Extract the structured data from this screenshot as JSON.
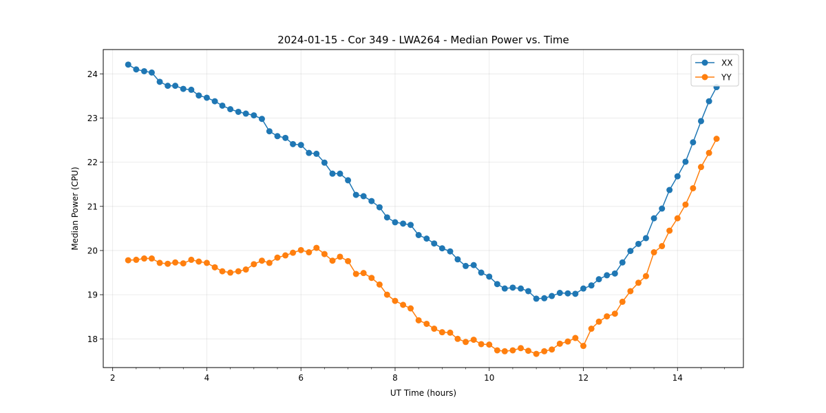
{
  "chart_data": {
    "type": "line",
    "title": "2024-01-15 - Cor 349 - LWA264 - Median Power vs. Time",
    "xlabel": "UT Time (hours)",
    "ylabel": "Median Power (CPU)",
    "xlim": [
      1.8,
      15.4
    ],
    "ylim": [
      17.35,
      24.55
    ],
    "xticks": [
      2,
      4,
      6,
      8,
      10,
      12,
      14
    ],
    "xtick_labels": [
      "2",
      "4",
      "6",
      "8",
      "10",
      "12",
      "14"
    ],
    "yticks": [
      18,
      19,
      20,
      21,
      22,
      23,
      24
    ],
    "ytick_labels": [
      "18",
      "19",
      "20",
      "21",
      "22",
      "23",
      "24"
    ],
    "grid": true,
    "legend_position": "top-right",
    "x": [
      2.33,
      2.5,
      2.67,
      2.83,
      3.0,
      3.17,
      3.33,
      3.5,
      3.67,
      3.83,
      4.0,
      4.17,
      4.33,
      4.5,
      4.67,
      4.83,
      5.0,
      5.17,
      5.33,
      5.5,
      5.67,
      5.83,
      6.0,
      6.17,
      6.33,
      6.5,
      6.67,
      6.83,
      7.0,
      7.17,
      7.33,
      7.5,
      7.67,
      7.83,
      8.0,
      8.17,
      8.33,
      8.5,
      8.67,
      8.83,
      9.0,
      9.17,
      9.33,
      9.5,
      9.67,
      9.83,
      10.0,
      10.17,
      10.33,
      10.5,
      10.67,
      10.83,
      11.0,
      11.17,
      11.33,
      11.5,
      11.67,
      11.83,
      12.0,
      12.17,
      12.33,
      12.5,
      12.67,
      12.83,
      13.0,
      13.17,
      13.33,
      13.5,
      13.67,
      13.83,
      14.0,
      14.17,
      14.33,
      14.5,
      14.67,
      14.83
    ],
    "series": [
      {
        "name": "XX",
        "color": "#1f77b4",
        "values": [
          24.21,
          24.1,
          24.06,
          24.03,
          23.82,
          23.73,
          23.73,
          23.66,
          23.64,
          23.51,
          23.46,
          23.38,
          23.28,
          23.2,
          23.14,
          23.1,
          23.06,
          22.98,
          22.7,
          22.59,
          22.55,
          22.41,
          22.39,
          22.21,
          22.19,
          21.99,
          21.74,
          21.74,
          21.59,
          21.26,
          21.23,
          21.12,
          20.98,
          20.75,
          20.64,
          20.61,
          20.58,
          20.35,
          20.27,
          20.16,
          20.05,
          19.98,
          19.8,
          19.65,
          19.67,
          19.5,
          19.41,
          19.24,
          19.14,
          19.16,
          19.14,
          19.08,
          18.91,
          18.92,
          18.97,
          19.04,
          19.03,
          19.02,
          19.14,
          19.21,
          19.35,
          19.44,
          19.48,
          19.73,
          19.99,
          20.15,
          20.28,
          20.73,
          20.95,
          21.37,
          21.68,
          22.01,
          22.45,
          22.93,
          23.38,
          23.7
        ]
      },
      {
        "name": "YY",
        "color": "#ff7f0e",
        "values": [
          19.78,
          19.79,
          19.82,
          19.82,
          19.72,
          19.7,
          19.73,
          19.71,
          19.79,
          19.75,
          19.72,
          19.62,
          19.53,
          19.5,
          19.53,
          19.57,
          19.69,
          19.77,
          19.72,
          19.84,
          19.89,
          19.95,
          20.01,
          19.96,
          20.06,
          19.92,
          19.77,
          19.86,
          19.76,
          19.47,
          19.49,
          19.38,
          19.23,
          19.0,
          18.86,
          18.77,
          18.69,
          18.42,
          18.34,
          18.23,
          18.15,
          18.14,
          18.0,
          17.93,
          17.98,
          17.88,
          17.87,
          17.74,
          17.72,
          17.74,
          17.79,
          17.73,
          17.66,
          17.72,
          17.76,
          17.89,
          17.94,
          18.02,
          17.84,
          18.23,
          18.39,
          18.51,
          18.57,
          18.84,
          19.08,
          19.27,
          19.42,
          19.96,
          20.1,
          20.45,
          20.73,
          21.04,
          21.41,
          21.89,
          22.21,
          22.53
        ]
      }
    ]
  }
}
